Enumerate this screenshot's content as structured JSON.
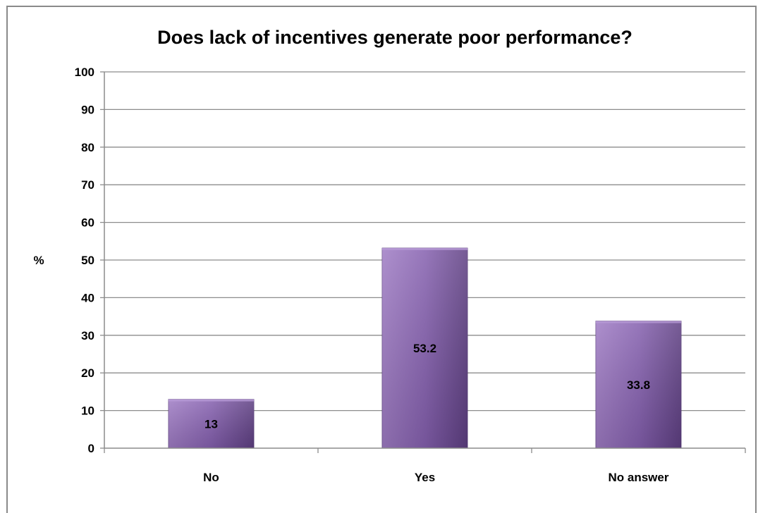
{
  "chart_data": {
    "type": "bar",
    "title": "Does lack of incentives generate poor performance?",
    "xlabel": "",
    "ylabel": "%",
    "categories": [
      "No",
      "Yes",
      "No answer"
    ],
    "values": [
      13,
      53.2,
      33.8
    ],
    "value_labels": [
      "13",
      "53.2",
      "33.8"
    ],
    "ylim": [
      0,
      100
    ],
    "yticks": [
      0,
      10,
      20,
      30,
      40,
      50,
      60,
      70,
      80,
      90,
      100
    ],
    "grid": true,
    "legend": "none"
  },
  "colors": {
    "bar_fill_top": "#9f7cc4",
    "bar_fill_mid": "#8560af",
    "bar_fill_bottom": "#5e3f82",
    "grid_line": "#8c8c8c",
    "frame": "#8a8a8a"
  }
}
